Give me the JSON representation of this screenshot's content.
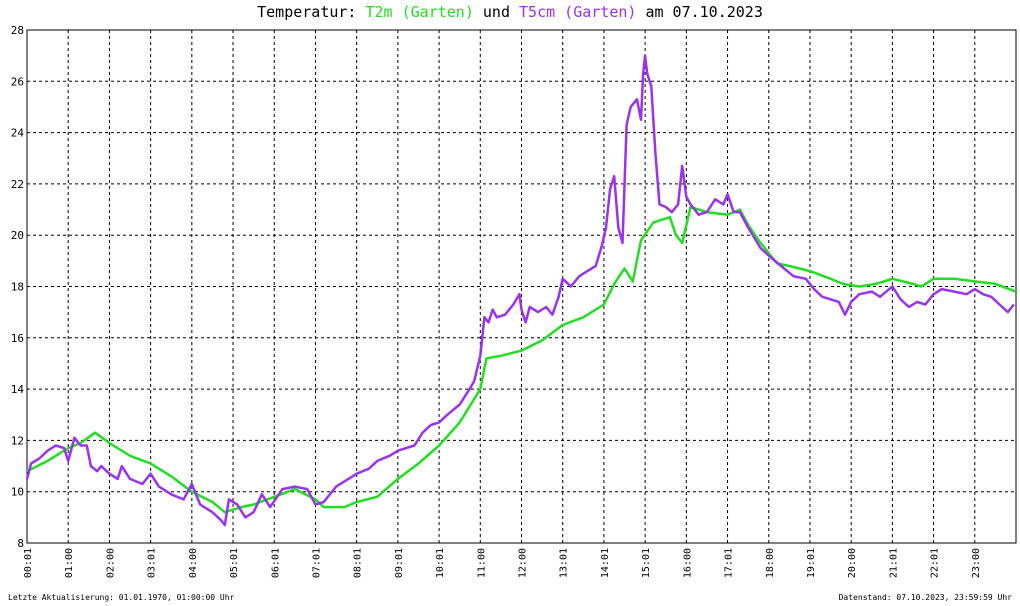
{
  "chart_data": {
    "type": "line",
    "title_parts": [
      "Temperatur: ",
      "T2m (Garten)",
      " und ",
      "T5cm (Garten)",
      " am 07.10.2023"
    ],
    "x_ticks": [
      "00:01",
      "01:00",
      "02:00",
      "03:01",
      "04:00",
      "05:01",
      "06:01",
      "07:01",
      "08:01",
      "09:01",
      "10:01",
      "11:00",
      "12:00",
      "13:01",
      "14:01",
      "15:01",
      "16:00",
      "17:01",
      "18:00",
      "19:01",
      "20:00",
      "21:01",
      "22:01",
      "23:00"
    ],
    "y_ticks": [
      8,
      10,
      12,
      14,
      16,
      18,
      20,
      22,
      24,
      26,
      28
    ],
    "xlim": [
      0,
      24
    ],
    "ylim": [
      8,
      28
    ],
    "grid": true,
    "series": [
      {
        "name": "T2m (Garten)",
        "color": "#22dd22",
        "points": [
          [
            0,
            10.8
          ],
          [
            0.5,
            11.2
          ],
          [
            1,
            11.7
          ],
          [
            1.3,
            11.9
          ],
          [
            1.65,
            12.3
          ],
          [
            2,
            11.9
          ],
          [
            2.5,
            11.4
          ],
          [
            3,
            11.1
          ],
          [
            3.5,
            10.6
          ],
          [
            4,
            10.0
          ],
          [
            4.5,
            9.6
          ],
          [
            4.8,
            9.2
          ],
          [
            5.2,
            9.4
          ],
          [
            5.5,
            9.5
          ],
          [
            6,
            9.8
          ],
          [
            6.5,
            10.1
          ],
          [
            7,
            9.7
          ],
          [
            7.2,
            9.4
          ],
          [
            7.7,
            9.4
          ],
          [
            8,
            9.6
          ],
          [
            8.5,
            9.8
          ],
          [
            9,
            10.5
          ],
          [
            9.5,
            11.1
          ],
          [
            10,
            11.8
          ],
          [
            10.5,
            12.7
          ],
          [
            11,
            14.0
          ],
          [
            11.15,
            15.2
          ],
          [
            11.5,
            15.3
          ],
          [
            12,
            15.5
          ],
          [
            12.5,
            15.9
          ],
          [
            13,
            16.5
          ],
          [
            13.5,
            16.8
          ],
          [
            14,
            17.3
          ],
          [
            14.25,
            18.1
          ],
          [
            14.5,
            18.7
          ],
          [
            14.7,
            18.2
          ],
          [
            14.9,
            19.8
          ],
          [
            15.2,
            20.5
          ],
          [
            15.6,
            20.7
          ],
          [
            15.75,
            20.0
          ],
          [
            15.9,
            19.7
          ],
          [
            16.1,
            21.1
          ],
          [
            16.5,
            20.9
          ],
          [
            17,
            20.8
          ],
          [
            17.3,
            21.0
          ],
          [
            17.5,
            20.4
          ],
          [
            17.8,
            19.7
          ],
          [
            18.2,
            18.9
          ],
          [
            18.5,
            18.8
          ],
          [
            19,
            18.6
          ],
          [
            19.5,
            18.3
          ],
          [
            19.8,
            18.1
          ],
          [
            20.2,
            18.0
          ],
          [
            20.6,
            18.1
          ],
          [
            21,
            18.3
          ],
          [
            21.5,
            18.1
          ],
          [
            21.7,
            18.0
          ],
          [
            22,
            18.3
          ],
          [
            22.5,
            18.3
          ],
          [
            23,
            18.2
          ],
          [
            23.5,
            18.1
          ],
          [
            24,
            17.8
          ]
        ]
      },
      {
        "name": "T5cm (Garten)",
        "color": "#9933ee",
        "points": [
          [
            0,
            10.5
          ],
          [
            0.1,
            11.1
          ],
          [
            0.3,
            11.3
          ],
          [
            0.5,
            11.6
          ],
          [
            0.7,
            11.8
          ],
          [
            0.9,
            11.7
          ],
          [
            1.0,
            11.2
          ],
          [
            1.15,
            12.1
          ],
          [
            1.3,
            11.8
          ],
          [
            1.45,
            11.8
          ],
          [
            1.55,
            11.0
          ],
          [
            1.7,
            10.8
          ],
          [
            1.8,
            11.0
          ],
          [
            2,
            10.7
          ],
          [
            2.2,
            10.5
          ],
          [
            2.3,
            11.0
          ],
          [
            2.5,
            10.5
          ],
          [
            2.8,
            10.3
          ],
          [
            3.0,
            10.7
          ],
          [
            3.2,
            10.2
          ],
          [
            3.5,
            9.9
          ],
          [
            3.8,
            9.7
          ],
          [
            4.0,
            10.3
          ],
          [
            4.2,
            9.5
          ],
          [
            4.5,
            9.2
          ],
          [
            4.7,
            8.9
          ],
          [
            4.8,
            8.7
          ],
          [
            4.9,
            9.7
          ],
          [
            5.1,
            9.5
          ],
          [
            5.3,
            9.0
          ],
          [
            5.5,
            9.2
          ],
          [
            5.7,
            9.9
          ],
          [
            5.9,
            9.4
          ],
          [
            6.2,
            10.1
          ],
          [
            6.5,
            10.2
          ],
          [
            6.8,
            10.1
          ],
          [
            7.0,
            9.5
          ],
          [
            7.2,
            9.6
          ],
          [
            7.5,
            10.2
          ],
          [
            7.8,
            10.5
          ],
          [
            8.0,
            10.7
          ],
          [
            8.3,
            10.9
          ],
          [
            8.5,
            11.2
          ],
          [
            8.8,
            11.4
          ],
          [
            9.0,
            11.6
          ],
          [
            9.2,
            11.7
          ],
          [
            9.4,
            11.8
          ],
          [
            9.6,
            12.3
          ],
          [
            9.8,
            12.6
          ],
          [
            10.0,
            12.7
          ],
          [
            10.2,
            13.0
          ],
          [
            10.5,
            13.4
          ],
          [
            10.7,
            13.9
          ],
          [
            10.85,
            14.3
          ],
          [
            11.0,
            15.3
          ],
          [
            11.1,
            16.8
          ],
          [
            11.2,
            16.6
          ],
          [
            11.3,
            17.1
          ],
          [
            11.4,
            16.8
          ],
          [
            11.6,
            16.9
          ],
          [
            11.8,
            17.3
          ],
          [
            11.95,
            17.7
          ],
          [
            12.0,
            17.1
          ],
          [
            12.1,
            16.6
          ],
          [
            12.2,
            17.2
          ],
          [
            12.4,
            17.0
          ],
          [
            12.6,
            17.2
          ],
          [
            12.75,
            16.9
          ],
          [
            12.9,
            17.6
          ],
          [
            13.0,
            18.3
          ],
          [
            13.2,
            18.0
          ],
          [
            13.4,
            18.4
          ],
          [
            13.6,
            18.6
          ],
          [
            13.8,
            18.8
          ],
          [
            13.95,
            19.6
          ],
          [
            14.05,
            20.3
          ],
          [
            14.15,
            21.8
          ],
          [
            14.25,
            22.3
          ],
          [
            14.35,
            20.3
          ],
          [
            14.45,
            19.7
          ],
          [
            14.55,
            24.3
          ],
          [
            14.65,
            25.0
          ],
          [
            14.8,
            25.3
          ],
          [
            14.9,
            24.5
          ],
          [
            14.95,
            26.3
          ],
          [
            15.0,
            27.0
          ],
          [
            15.05,
            26.3
          ],
          [
            15.15,
            25.8
          ],
          [
            15.25,
            23.2
          ],
          [
            15.35,
            21.2
          ],
          [
            15.5,
            21.1
          ],
          [
            15.65,
            20.9
          ],
          [
            15.8,
            21.2
          ],
          [
            15.9,
            22.7
          ],
          [
            16.0,
            21.5
          ],
          [
            16.1,
            21.2
          ],
          [
            16.3,
            20.8
          ],
          [
            16.5,
            20.9
          ],
          [
            16.7,
            21.4
          ],
          [
            16.9,
            21.2
          ],
          [
            17.0,
            21.6
          ],
          [
            17.15,
            20.9
          ],
          [
            17.3,
            20.9
          ],
          [
            17.5,
            20.3
          ],
          [
            17.8,
            19.5
          ],
          [
            18.0,
            19.2
          ],
          [
            18.3,
            18.8
          ],
          [
            18.6,
            18.4
          ],
          [
            18.9,
            18.3
          ],
          [
            19.1,
            17.9
          ],
          [
            19.3,
            17.6
          ],
          [
            19.5,
            17.5
          ],
          [
            19.7,
            17.4
          ],
          [
            19.85,
            16.9
          ],
          [
            20.0,
            17.4
          ],
          [
            20.2,
            17.7
          ],
          [
            20.5,
            17.8
          ],
          [
            20.7,
            17.6
          ],
          [
            21.0,
            18.0
          ],
          [
            21.2,
            17.5
          ],
          [
            21.4,
            17.2
          ],
          [
            21.6,
            17.4
          ],
          [
            21.8,
            17.3
          ],
          [
            22.0,
            17.7
          ],
          [
            22.2,
            17.9
          ],
          [
            22.5,
            17.8
          ],
          [
            22.8,
            17.7
          ],
          [
            23.0,
            17.9
          ],
          [
            23.2,
            17.7
          ],
          [
            23.4,
            17.6
          ],
          [
            23.6,
            17.3
          ],
          [
            23.8,
            17.0
          ],
          [
            23.95,
            17.3
          ]
        ]
      }
    ]
  },
  "footer": {
    "left": "Letzte Aktualisierung: 01.01.1970, 01:00:00 Uhr",
    "right": "Datenstand: 07.10.2023, 23:59:59 Uhr"
  }
}
